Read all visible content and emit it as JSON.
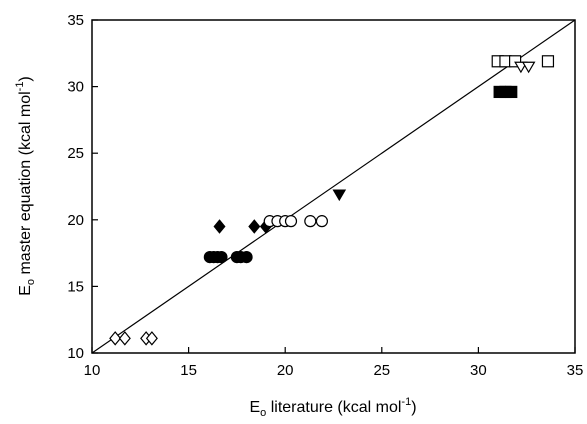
{
  "chart_data": {
    "type": "scatter",
    "xlabel": {
      "base": "E",
      "sub": "o",
      "rest": " literature (kcal mol",
      "sup": "-1",
      "close": ")"
    },
    "ylabel": {
      "base": "E",
      "sub": "o",
      "rest": " master equation (kcal mol",
      "sup": "-1",
      "close": ")"
    },
    "xlim": [
      10,
      35
    ],
    "ylim": [
      10,
      35
    ],
    "xticks": [
      "10",
      "15",
      "20",
      "25",
      "30",
      "35"
    ],
    "yticks": [
      "10",
      "15",
      "20",
      "25",
      "30",
      "35"
    ],
    "grid": false,
    "reference_line": {
      "from": [
        10,
        10
      ],
      "to": [
        35,
        35
      ]
    },
    "series": [
      {
        "marker": "diamond-open",
        "points": [
          [
            11.2,
            11.1
          ],
          [
            11.7,
            11.1
          ],
          [
            12.8,
            11.1
          ],
          [
            13.1,
            11.1
          ]
        ]
      },
      {
        "marker": "diamond-filled",
        "points": [
          [
            16.6,
            19.5
          ],
          [
            18.4,
            19.5
          ],
          [
            19.0,
            19.5
          ]
        ]
      },
      {
        "marker": "circle-filled",
        "points": [
          [
            16.1,
            17.2
          ],
          [
            16.3,
            17.2
          ],
          [
            16.5,
            17.2
          ],
          [
            16.7,
            17.2
          ],
          [
            17.5,
            17.2
          ],
          [
            17.7,
            17.2
          ],
          [
            18.0,
            17.2
          ]
        ]
      },
      {
        "marker": "circle-open",
        "points": [
          [
            19.2,
            19.9
          ],
          [
            19.6,
            19.9
          ],
          [
            20.0,
            19.9
          ],
          [
            20.3,
            19.9
          ],
          [
            21.3,
            19.9
          ],
          [
            21.9,
            19.9
          ]
        ]
      },
      {
        "marker": "triangle-down-filled",
        "points": [
          [
            22.8,
            21.9
          ]
        ]
      },
      {
        "marker": "square-open",
        "points": [
          [
            31.0,
            31.9
          ],
          [
            31.4,
            31.9
          ],
          [
            31.9,
            31.9
          ],
          [
            33.6,
            31.9
          ]
        ]
      },
      {
        "marker": "square-filled",
        "points": [
          [
            31.1,
            29.6
          ],
          [
            31.4,
            29.6
          ],
          [
            31.7,
            29.6
          ]
        ]
      },
      {
        "marker": "triangle-down-open",
        "points": [
          [
            32.2,
            31.5
          ],
          [
            32.6,
            31.5
          ]
        ]
      }
    ]
  }
}
